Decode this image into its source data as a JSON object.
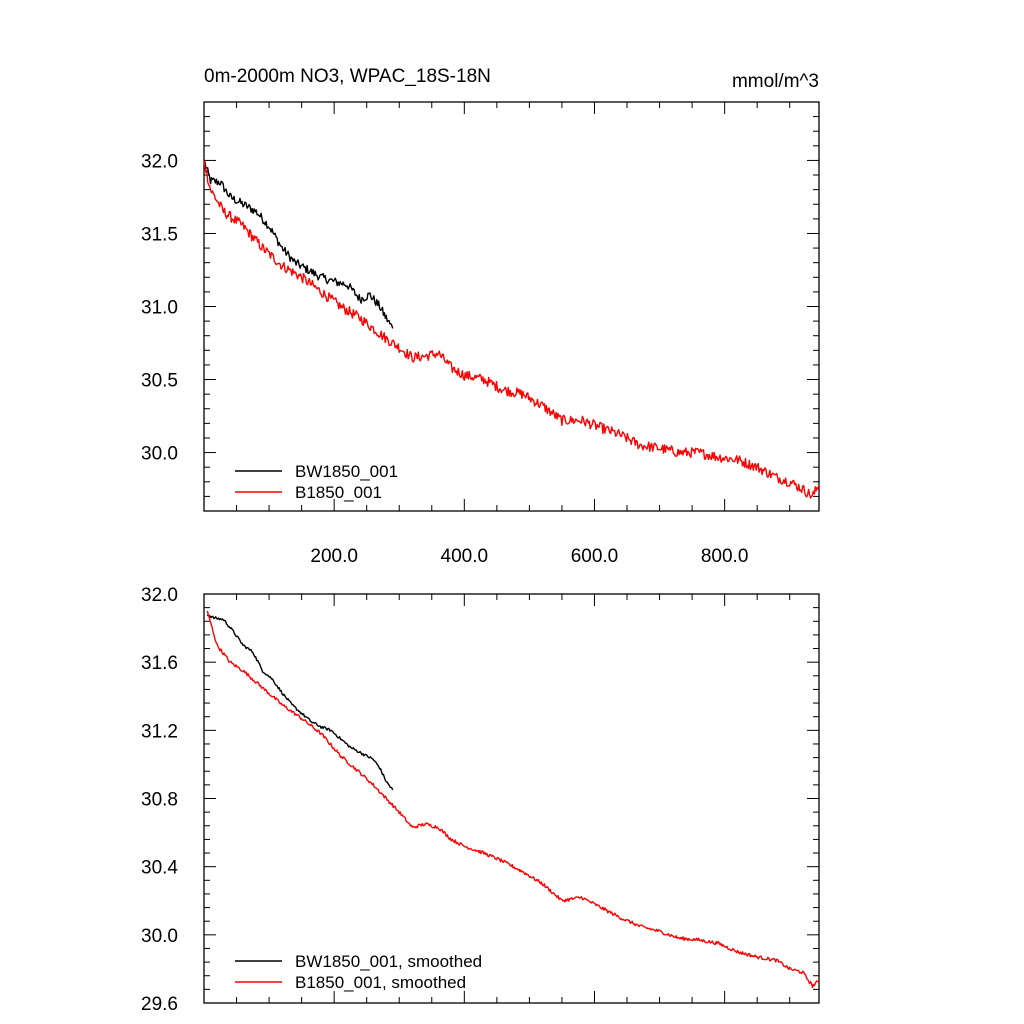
{
  "chart_data": [
    {
      "type": "line",
      "title": "0m-2000m NO3, WPAC_18S-18N",
      "units": "mmol/m^3",
      "xlim": [
        0,
        945
      ],
      "ylim": [
        29.6,
        32.4
      ],
      "x_ticks": [
        200,
        400,
        600,
        800
      ],
      "x_tick_labels": [
        "200.0",
        "400.0",
        "600.0",
        "800.0"
      ],
      "y_ticks": [
        30.0,
        30.5,
        31.0,
        31.5,
        32.0
      ],
      "y_tick_labels": [
        "30.0",
        "30.5",
        "31.0",
        "31.5",
        "32.0"
      ],
      "grid": false,
      "legend_position": "bottom-left",
      "series": [
        {
          "name": "BW1850_001",
          "color": "#000000",
          "x": [
            0,
            10,
            25,
            40,
            60,
            80,
            100,
            120,
            140,
            160,
            180,
            200,
            220,
            240,
            255,
            270,
            280,
            290
          ],
          "y": [
            32.0,
            31.86,
            31.85,
            31.75,
            31.7,
            31.65,
            31.55,
            31.4,
            31.3,
            31.25,
            31.2,
            31.17,
            31.15,
            31.05,
            31.08,
            31.0,
            30.92,
            30.85
          ],
          "noise": 0.03
        },
        {
          "name": "B1850_001",
          "color": "#ff0000",
          "x": [
            0,
            10,
            30,
            60,
            90,
            120,
            150,
            180,
            210,
            240,
            260,
            280,
            300,
            320,
            340,
            360,
            380,
            400,
            430,
            460,
            490,
            520,
            550,
            580,
            610,
            640,
            670,
            700,
            730,
            760,
            790,
            820,
            850,
            880,
            900,
            920,
            935,
            945
          ],
          "y": [
            32.0,
            31.8,
            31.65,
            31.55,
            31.4,
            31.28,
            31.2,
            31.1,
            31.0,
            30.92,
            30.85,
            30.78,
            30.72,
            30.65,
            30.66,
            30.68,
            30.58,
            30.53,
            30.5,
            30.43,
            30.4,
            30.32,
            30.22,
            30.22,
            30.17,
            30.12,
            30.05,
            30.03,
            30.0,
            30.0,
            29.97,
            29.95,
            29.9,
            29.83,
            29.8,
            29.75,
            29.7,
            29.78
          ],
          "noise": 0.035
        }
      ]
    },
    {
      "type": "line",
      "xlim": [
        0,
        945
      ],
      "ylim": [
        29.6,
        32.0
      ],
      "x_ticks": [
        200,
        400,
        600,
        800
      ],
      "y_ticks": [
        29.6,
        30.0,
        30.4,
        30.8,
        31.2,
        31.6,
        32.0
      ],
      "y_tick_labels": [
        "29.6",
        "30.0",
        "30.4",
        "30.8",
        "31.2",
        "31.6",
        "32.0"
      ],
      "grid": false,
      "legend_position": "bottom-left",
      "series": [
        {
          "name": "BW1850_001, smoothed",
          "color": "#000000",
          "x": [
            5,
            15,
            30,
            45,
            60,
            75,
            90,
            105,
            120,
            135,
            150,
            165,
            180,
            195,
            210,
            225,
            240,
            250,
            260,
            270,
            280,
            290
          ],
          "y": [
            31.88,
            31.86,
            31.85,
            31.78,
            31.7,
            31.66,
            31.55,
            31.5,
            31.42,
            31.35,
            31.3,
            31.25,
            31.22,
            31.2,
            31.15,
            31.1,
            31.07,
            31.05,
            31.03,
            30.98,
            30.9,
            30.85
          ],
          "noise": 0.008
        },
        {
          "name": "B1850_001, smoothed",
          "color": "#ff0000",
          "x": [
            5,
            20,
            40,
            60,
            90,
            120,
            150,
            180,
            210,
            240,
            260,
            280,
            300,
            320,
            340,
            360,
            380,
            400,
            430,
            460,
            490,
            520,
            550,
            580,
            610,
            640,
            670,
            700,
            730,
            760,
            790,
            820,
            850,
            880,
            900,
            920,
            935,
            945
          ],
          "y": [
            31.9,
            31.7,
            31.6,
            31.55,
            31.45,
            31.35,
            31.27,
            31.18,
            31.05,
            30.95,
            30.88,
            30.8,
            30.72,
            30.63,
            30.65,
            30.63,
            30.56,
            30.52,
            30.48,
            30.43,
            30.37,
            30.3,
            30.2,
            30.22,
            30.16,
            30.1,
            30.05,
            30.02,
            29.98,
            29.97,
            29.95,
            29.9,
            29.87,
            29.85,
            29.8,
            29.78,
            29.7,
            29.73
          ],
          "noise": 0.01
        }
      ]
    }
  ]
}
